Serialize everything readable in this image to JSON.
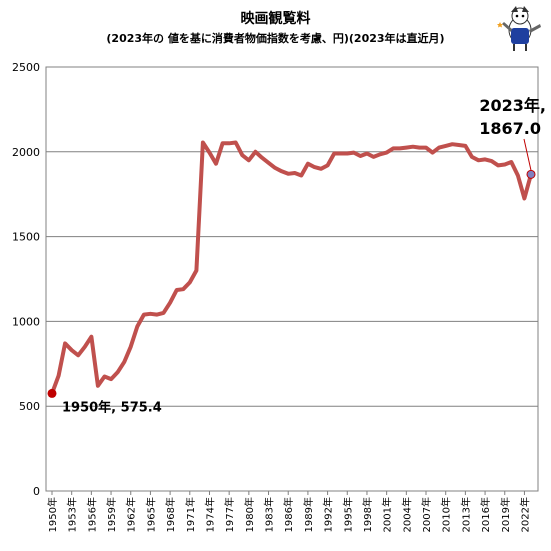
{
  "chart_data": {
    "type": "line",
    "title": "映画観覧料",
    "subtitle": "(2023年の 値を基に消費者物価指数を考慮、円)(2023年は直近月)",
    "xlabel": "",
    "ylabel": "",
    "ylim": [
      0,
      2500
    ],
    "yticks": [
      "0",
      "500",
      "1000",
      "1500",
      "2000",
      "2500"
    ],
    "grid": true,
    "legend": "none",
    "x_tick_labels": [
      "1950年",
      "1953年",
      "1956年",
      "1959年",
      "1962年",
      "1965年",
      "1968年",
      "1971年",
      "1974年",
      "1977年",
      "1980年",
      "1983年",
      "1986年",
      "1989年",
      "1992年",
      "1995年",
      "1998年",
      "2001年",
      "2004年",
      "2007年",
      "2010年",
      "2013年",
      "2016年",
      "2019年",
      "2022年"
    ],
    "series": [
      {
        "x": [
          1950,
          1951,
          1952,
          1953,
          1954,
          1955,
          1956,
          1957,
          1958,
          1959,
          1960,
          1961,
          1962,
          1963,
          1964,
          1965,
          1966,
          1967,
          1968,
          1969,
          1970,
          1971,
          1972,
          1973,
          1974,
          1975,
          1976,
          1977,
          1978,
          1979,
          1980,
          1981,
          1982,
          1983,
          1984,
          1985,
          1986,
          1987,
          1988,
          1989,
          1990,
          1991,
          1992,
          1993,
          1994,
          1995,
          1996,
          1997,
          1998,
          1999,
          2000,
          2001,
          2002,
          2003,
          2004,
          2005,
          2006,
          2007,
          2008,
          2009,
          2010,
          2011,
          2012,
          2013,
          2014,
          2015,
          2016,
          2017,
          2018,
          2019,
          2020,
          2021,
          2022,
          2023
        ],
        "values": [
          575.4,
          680,
          870,
          830,
          800,
          850,
          910,
          620,
          675,
          660,
          700,
          760,
          850,
          970,
          1040,
          1045,
          1040,
          1050,
          1110,
          1185,
          1190,
          1230,
          1300,
          2055,
          1995,
          1930,
          2050,
          2050,
          2055,
          1980,
          1950,
          2000,
          1965,
          1935,
          1905,
          1885,
          1870,
          1875,
          1860,
          1930,
          1910,
          1900,
          1920,
          1990,
          1990,
          1990,
          1995,
          1975,
          1990,
          1970,
          1985,
          1995,
          2020,
          2020,
          2025,
          2030,
          2025,
          2025,
          1995,
          2025,
          2035,
          2045,
          2040,
          2035,
          1970,
          1950,
          1955,
          1945,
          1920,
          1925,
          1940,
          1860,
          1725,
          1867.0
        ]
      }
    ],
    "line_color": "#c0504d",
    "marker_color": "#c00000",
    "end_marker_color": "#8080c0",
    "annotations": {
      "start": "1950年, 575.4",
      "end_line1": "2023年,",
      "end_line2": "1867.0"
    }
  }
}
